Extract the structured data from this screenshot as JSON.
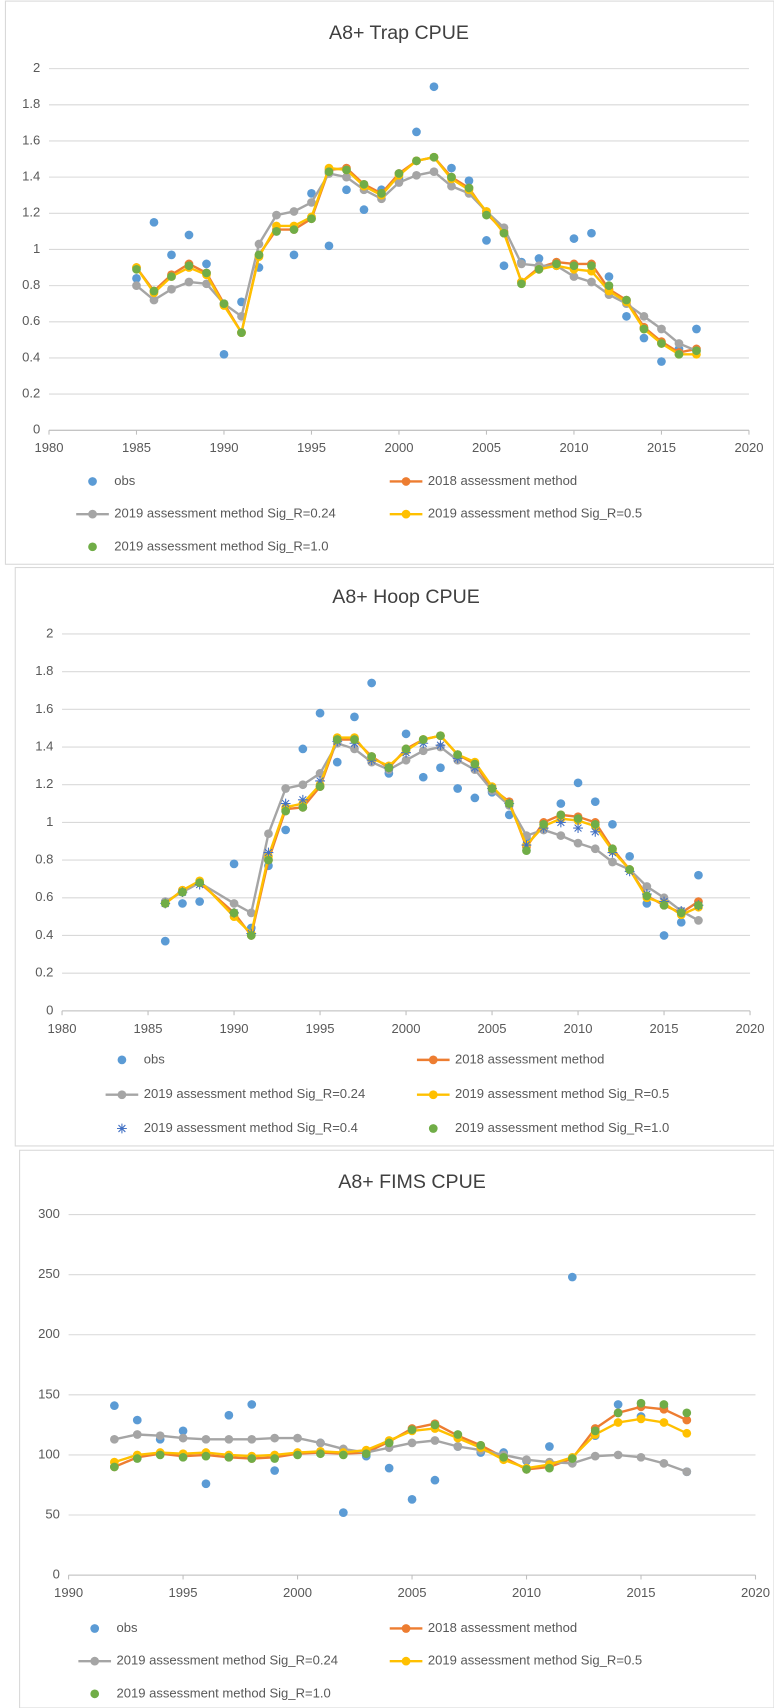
{
  "chart_data": [
    {
      "type": "line",
      "title": "A8+ Trap CPUE",
      "x": [
        1985,
        1986,
        1987,
        1988,
        1989,
        1990,
        1991,
        1992,
        1993,
        1994,
        1995,
        1996,
        1997,
        1998,
        1999,
        2000,
        2001,
        2002,
        2003,
        2004,
        2005,
        2006,
        2007,
        2008,
        2009,
        2010,
        2011,
        2012,
        2013,
        2014,
        2015,
        2016,
        2017
      ],
      "xlim": [
        1980,
        2020
      ],
      "xticks": [
        1980,
        1985,
        1990,
        1995,
        2000,
        2005,
        2010,
        2015,
        2020
      ],
      "ylim": [
        0,
        2
      ],
      "yticks": [
        0,
        0.2,
        0.4,
        0.6,
        0.8,
        1,
        1.2,
        1.4,
        1.6,
        1.8,
        2
      ],
      "grid": true,
      "series": [
        {
          "name": "obs",
          "color": "#5b9bd5",
          "line": false,
          "marker": "circle",
          "values": [
            0.84,
            1.15,
            0.97,
            1.08,
            0.92,
            0.42,
            0.71,
            0.9,
            1.1,
            0.97,
            1.31,
            1.02,
            1.33,
            1.22,
            1.33,
            1.39,
            1.65,
            1.9,
            1.45,
            1.38,
            1.05,
            0.91,
            0.93,
            0.95,
            0.91,
            1.06,
            1.09,
            0.85,
            0.63,
            0.51,
            0.38,
            0.45,
            0.56
          ]
        },
        {
          "name": "2018 assessment method",
          "color": "#ed7d31",
          "line": true,
          "marker": "circle",
          "values": [
            0.9,
            0.77,
            0.86,
            0.92,
            0.87,
            0.7,
            0.54,
            0.97,
            1.11,
            1.11,
            1.17,
            1.44,
            1.45,
            1.36,
            1.31,
            1.42,
            1.49,
            1.51,
            1.4,
            1.34,
            1.2,
            1.1,
            0.82,
            0.9,
            0.93,
            0.92,
            0.92,
            0.78,
            0.72,
            0.57,
            0.49,
            0.43,
            0.45
          ]
        },
        {
          "name": "2019 assessment method Sig_R=0.24",
          "color": "#a5a5a5",
          "line": true,
          "marker": "circle",
          "values": [
            0.8,
            0.72,
            0.78,
            0.82,
            0.81,
            0.7,
            0.63,
            1.03,
            1.19,
            1.21,
            1.26,
            1.42,
            1.4,
            1.33,
            1.28,
            1.37,
            1.41,
            1.43,
            1.35,
            1.31,
            1.21,
            1.12,
            0.92,
            0.91,
            0.91,
            0.85,
            0.82,
            0.75,
            0.7,
            0.63,
            0.56,
            0.48,
            0.44
          ]
        },
        {
          "name": "2019 assessment method Sig_R=0.5",
          "color": "#ffc000",
          "line": true,
          "marker": "circle",
          "values": [
            0.9,
            0.76,
            0.85,
            0.9,
            0.86,
            0.69,
            0.54,
            0.96,
            1.13,
            1.13,
            1.18,
            1.45,
            1.44,
            1.35,
            1.3,
            1.41,
            1.49,
            1.51,
            1.39,
            1.33,
            1.21,
            1.09,
            0.82,
            0.89,
            0.91,
            0.89,
            0.88,
            0.77,
            0.71,
            0.56,
            0.48,
            0.42,
            0.42
          ]
        },
        {
          "name": "2019 assessment method Sig_R=1.0",
          "color": "#70ad47",
          "line": false,
          "marker": "circle",
          "values": [
            0.89,
            0.77,
            0.85,
            0.91,
            0.87,
            0.7,
            0.54,
            0.97,
            1.1,
            1.11,
            1.17,
            1.43,
            1.44,
            1.36,
            1.31,
            1.42,
            1.49,
            1.51,
            1.4,
            1.34,
            1.19,
            1.09,
            0.81,
            0.89,
            0.92,
            0.91,
            0.91,
            0.8,
            0.72,
            0.56,
            0.48,
            0.42,
            0.44
          ]
        }
      ]
    },
    {
      "type": "line",
      "title": "A8+ Hoop CPUE",
      "x": [
        1986,
        1987,
        1988,
        1990,
        1991,
        1992,
        1993,
        1994,
        1995,
        1996,
        1997,
        1998,
        1999,
        2000,
        2001,
        2002,
        2003,
        2004,
        2005,
        2006,
        2007,
        2008,
        2009,
        2010,
        2011,
        2012,
        2013,
        2014,
        2015,
        2016,
        2017
      ],
      "xlim": [
        1980,
        2020
      ],
      "xticks": [
        1980,
        1985,
        1990,
        1995,
        2000,
        2005,
        2010,
        2015,
        2020
      ],
      "ylim": [
        0,
        2
      ],
      "yticks": [
        0,
        0.2,
        0.4,
        0.6,
        0.8,
        1,
        1.2,
        1.4,
        1.6,
        1.8,
        2
      ],
      "grid": true,
      "series": [
        {
          "name": "obs",
          "color": "#5b9bd5",
          "line": false,
          "marker": "circle",
          "values": [
            0.37,
            0.57,
            0.58,
            0.78,
            0.44,
            0.77,
            0.96,
            1.39,
            1.58,
            1.32,
            1.56,
            1.74,
            1.26,
            1.47,
            1.24,
            1.29,
            1.18,
            1.13,
            1.16,
            1.04,
            0.92,
            0.96,
            1.1,
            1.21,
            1.11,
            0.99,
            0.82,
            0.57,
            0.4,
            0.47,
            0.72
          ]
        },
        {
          "name": "2018 assessment method",
          "color": "#ed7d31",
          "line": true,
          "marker": "circle",
          "values": [
            0.57,
            0.64,
            0.68,
            0.52,
            0.4,
            0.8,
            1.07,
            1.08,
            1.19,
            1.44,
            1.44,
            1.35,
            1.29,
            1.39,
            1.44,
            1.46,
            1.36,
            1.31,
            1.18,
            1.11,
            0.87,
            1.0,
            1.04,
            1.03,
            1.0,
            0.86,
            0.75,
            0.61,
            0.56,
            0.52,
            0.58
          ]
        },
        {
          "name": "2019 assessment method Sig_R=0.24",
          "color": "#a5a5a5",
          "line": true,
          "marker": "circle",
          "values": [
            0.58,
            0.63,
            0.68,
            0.57,
            0.52,
            0.94,
            1.18,
            1.2,
            1.26,
            1.42,
            1.39,
            1.32,
            1.28,
            1.33,
            1.38,
            1.4,
            1.33,
            1.28,
            1.17,
            1.09,
            0.93,
            0.96,
            0.93,
            0.89,
            0.86,
            0.79,
            0.75,
            0.66,
            0.6,
            0.53,
            0.48
          ]
        },
        {
          "name": "2019 assessment method Sig_R=0.5",
          "color": "#ffc000",
          "line": true,
          "marker": "circle",
          "values": [
            0.57,
            0.64,
            0.69,
            0.5,
            0.41,
            0.82,
            1.08,
            1.1,
            1.2,
            1.45,
            1.45,
            1.34,
            1.3,
            1.38,
            1.44,
            1.46,
            1.36,
            1.32,
            1.19,
            1.1,
            0.88,
            0.98,
            1.02,
            1.01,
            0.98,
            0.85,
            0.75,
            0.6,
            0.57,
            0.51,
            0.55
          ]
        },
        {
          "name": "2019 assessment method Sig_R=0.4",
          "color": "#4472c4",
          "line": false,
          "marker": "asterisk",
          "values": [
            0.57,
            0.63,
            0.67,
            0.52,
            0.41,
            0.84,
            1.1,
            1.12,
            1.22,
            1.43,
            1.42,
            1.33,
            1.29,
            1.37,
            1.42,
            1.41,
            1.34,
            1.29,
            1.18,
            1.1,
            0.88,
            0.97,
            1.0,
            0.97,
            0.95,
            0.84,
            0.74,
            0.62,
            0.58,
            0.53,
            0.56
          ]
        },
        {
          "name": "2019 assessment method Sig_R=1.0",
          "color": "#70ad47",
          "line": false,
          "marker": "circle",
          "values": [
            0.57,
            0.63,
            0.68,
            0.52,
            0.4,
            0.8,
            1.06,
            1.08,
            1.19,
            1.44,
            1.44,
            1.35,
            1.29,
            1.39,
            1.44,
            1.46,
            1.36,
            1.31,
            1.18,
            1.1,
            0.85,
            0.99,
            1.04,
            1.02,
            0.99,
            0.86,
            0.75,
            0.61,
            0.56,
            0.52,
            0.56
          ]
        }
      ]
    },
    {
      "type": "line",
      "title": "A8+ FIMS CPUE",
      "x": [
        1992,
        1993,
        1994,
        1995,
        1996,
        1997,
        1998,
        1999,
        2000,
        2001,
        2002,
        2003,
        2004,
        2005,
        2006,
        2007,
        2008,
        2009,
        2010,
        2011,
        2012,
        2013,
        2014,
        2015,
        2016,
        2017
      ],
      "xlim": [
        1990,
        2020
      ],
      "xticks": [
        1990,
        1995,
        2000,
        2005,
        2010,
        2015,
        2020
      ],
      "ylim": [
        0,
        300
      ],
      "yticks": [
        0,
        50,
        100,
        150,
        200,
        250,
        300
      ],
      "grid": true,
      "series": [
        {
          "name": "obs",
          "color": "#5b9bd5",
          "line": false,
          "marker": "circle",
          "values": [
            141,
            129,
            113,
            120,
            76,
            133,
            142,
            87,
            101,
            110,
            52,
            99,
            89,
            63,
            79,
            107,
            102,
            102,
            95,
            107,
            248,
            116,
            142,
            132,
            140,
            86
          ]
        },
        {
          "name": "2018 assessment method",
          "color": "#ed7d31",
          "line": true,
          "marker": "circle",
          "values": [
            90,
            98,
            101,
            99,
            100,
            98,
            97,
            98,
            101,
            102,
            101,
            102,
            111,
            122,
            126,
            116,
            108,
            98,
            88,
            90,
            97,
            122,
            135,
            140,
            138,
            129
          ]
        },
        {
          "name": "2019 assessment method Sig_R=0.24",
          "color": "#a5a5a5",
          "line": true,
          "marker": "circle",
          "values": [
            113,
            117,
            116,
            114,
            113,
            113,
            113,
            114,
            114,
            110,
            105,
            102,
            106,
            110,
            112,
            107,
            104,
            100,
            96,
            94,
            93,
            99,
            100,
            98,
            93,
            86
          ]
        },
        {
          "name": "2019 assessment method Sig_R=0.5",
          "color": "#ffc000",
          "line": true,
          "marker": "circle",
          "values": [
            94,
            100,
            102,
            101,
            102,
            100,
            99,
            100,
            102,
            103,
            102,
            104,
            112,
            120,
            122,
            114,
            106,
            96,
            89,
            92,
            98,
            117,
            127,
            130,
            127,
            118
          ]
        },
        {
          "name": "2019 assessment method Sig_R=1.0",
          "color": "#70ad47",
          "line": false,
          "marker": "circle",
          "values": [
            90,
            97,
            100,
            98,
            99,
            98,
            97,
            97,
            100,
            101,
            100,
            101,
            110,
            121,
            125,
            117,
            108,
            98,
            88,
            89,
            97,
            120,
            135,
            143,
            142,
            135
          ]
        }
      ]
    }
  ]
}
